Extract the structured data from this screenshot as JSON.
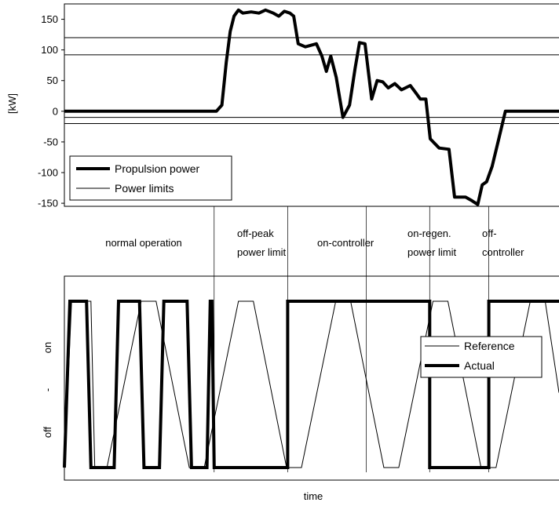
{
  "chart_data": [
    {
      "type": "line",
      "ylabel": "[kW]",
      "ylim": [
        -155,
        175
      ],
      "yticks": [
        150,
        100,
        50,
        0,
        -50,
        -100,
        -150
      ],
      "grid": false,
      "legend_position": "bottom-left",
      "legend": [
        "Propulsion power",
        "Power limits"
      ],
      "power_limits": [
        120,
        92,
        -10,
        -20,
        -155
      ],
      "series": [
        {
          "name": "Propulsion power",
          "x": [
            0,
            27.5,
            28.5,
            29.3,
            30.0,
            30.7,
            31.5,
            32.3,
            33.8,
            35.2,
            36.4,
            37.8,
            38.8,
            39.8,
            40.8,
            41.5,
            42.3,
            43.6,
            45.6,
            46.6,
            47.4,
            48.2,
            49.2,
            50.4,
            51.6,
            52.6,
            53.4,
            54.4,
            55.6,
            56.6,
            57.6,
            58.6,
            59.8,
            61.0,
            62.6,
            63.6,
            64.4,
            65.4,
            66.2,
            67.8,
            69.6,
            70.6,
            71.6,
            72.6,
            73.6,
            74.8,
            75.6,
            76.4,
            77.4,
            78.6,
            79.8,
            81.8,
            89.5
          ],
          "values": [
            0,
            0,
            10,
            80,
            130,
            155,
            165,
            160,
            162,
            160,
            165,
            160,
            155,
            163,
            160,
            155,
            110,
            105,
            110,
            90,
            65,
            90,
            55,
            -10,
            10,
            70,
            112,
            110,
            20,
            50,
            48,
            38,
            45,
            35,
            42,
            30,
            20,
            20,
            -45,
            -60,
            -62,
            -140,
            -140,
            -140,
            -145,
            -152,
            -120,
            -115,
            -90,
            -45,
            0,
            0,
            0
          ]
        },
        {
          "name": "Power limits",
          "values": [
            120,
            92,
            -10,
            -20,
            -155
          ]
        }
      ]
    },
    {
      "type": "line",
      "xlabel": "time",
      "ytick_labels": [
        "on",
        "-",
        "off"
      ],
      "legend_position": "center-right",
      "legend": [
        "Reference",
        "Actual"
      ],
      "series": [
        {
          "name": "Reference",
          "x": [
            0,
            1.3,
            4.8,
            5.5,
            7.7,
            13.9,
            16.6,
            22.6,
            25.3,
            31.5,
            34.2,
            40.2,
            42.9,
            49.1,
            51.8,
            57.8,
            60.5,
            66.7,
            69.4,
            75.4,
            78.1,
            84.3,
            87.0,
            89.5
          ],
          "levels": [
            0,
            1,
            1,
            0,
            0,
            1,
            1,
            0,
            0,
            1,
            1,
            0,
            0,
            1,
            1,
            0,
            0,
            1,
            1,
            0,
            0,
            1,
            1,
            0.45
          ]
        },
        {
          "name": "Actual",
          "x": [
            0,
            1.0,
            4.0,
            4.8,
            9.0,
            9.8,
            13.6,
            14.4,
            17.2,
            18.0,
            22.2,
            23.0,
            25.8,
            26.4,
            26.7,
            27.1,
            40.4,
            40.4,
            66.1,
            66.1,
            76.8,
            76.8,
            88.0,
            88.7,
            89.5
          ],
          "levels": [
            0,
            1,
            1,
            0,
            0,
            1,
            1,
            0,
            0,
            1,
            1,
            0,
            0,
            1,
            1,
            0,
            0,
            1,
            1,
            0,
            0,
            1,
            1,
            1,
            1
          ]
        }
      ]
    }
  ],
  "phases": [
    {
      "label_lines": [
        "normal operation"
      ],
      "start": 0,
      "end": 27.1
    },
    {
      "label_lines": [
        "off-peak",
        "power limit"
      ],
      "start": 27.1,
      "end": 40.4
    },
    {
      "label_lines": [
        "on-controller"
      ],
      "start": 40.4,
      "end": 54.6
    },
    {
      "label_lines": [
        "on-regen.",
        "power limit"
      ],
      "start": 54.6,
      "end": 66.1
    },
    {
      "label_lines": [
        "off-",
        "controller"
      ],
      "start": 66.1,
      "end": 76.8
    }
  ],
  "phase_boundaries": [
    27.1,
    40.4,
    54.6,
    66.1,
    76.8
  ],
  "colors": {
    "line": "#000000",
    "limit": "#000000",
    "background": "#ffffff"
  }
}
